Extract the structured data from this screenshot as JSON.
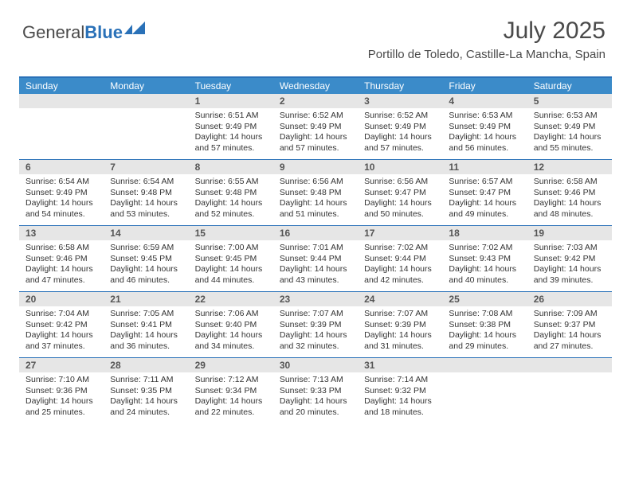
{
  "logo": {
    "text1": "General",
    "text2": "Blue"
  },
  "header": {
    "month_title": "July 2025",
    "location": "Portillo de Toledo, Castille-La Mancha, Spain"
  },
  "colors": {
    "brand_blue": "#2a71b8",
    "header_blue": "#3b8bc9",
    "daynum_bg": "#e6e6e6",
    "text": "#333333"
  },
  "day_names": [
    "Sunday",
    "Monday",
    "Tuesday",
    "Wednesday",
    "Thursday",
    "Friday",
    "Saturday"
  ],
  "first_weekday_index": 2,
  "days": [
    {
      "n": 1,
      "sunrise": "6:51 AM",
      "sunset": "9:49 PM",
      "daylight": "14 hours and 57 minutes."
    },
    {
      "n": 2,
      "sunrise": "6:52 AM",
      "sunset": "9:49 PM",
      "daylight": "14 hours and 57 minutes."
    },
    {
      "n": 3,
      "sunrise": "6:52 AM",
      "sunset": "9:49 PM",
      "daylight": "14 hours and 57 minutes."
    },
    {
      "n": 4,
      "sunrise": "6:53 AM",
      "sunset": "9:49 PM",
      "daylight": "14 hours and 56 minutes."
    },
    {
      "n": 5,
      "sunrise": "6:53 AM",
      "sunset": "9:49 PM",
      "daylight": "14 hours and 55 minutes."
    },
    {
      "n": 6,
      "sunrise": "6:54 AM",
      "sunset": "9:49 PM",
      "daylight": "14 hours and 54 minutes."
    },
    {
      "n": 7,
      "sunrise": "6:54 AM",
      "sunset": "9:48 PM",
      "daylight": "14 hours and 53 minutes."
    },
    {
      "n": 8,
      "sunrise": "6:55 AM",
      "sunset": "9:48 PM",
      "daylight": "14 hours and 52 minutes."
    },
    {
      "n": 9,
      "sunrise": "6:56 AM",
      "sunset": "9:48 PM",
      "daylight": "14 hours and 51 minutes."
    },
    {
      "n": 10,
      "sunrise": "6:56 AM",
      "sunset": "9:47 PM",
      "daylight": "14 hours and 50 minutes."
    },
    {
      "n": 11,
      "sunrise": "6:57 AM",
      "sunset": "9:47 PM",
      "daylight": "14 hours and 49 minutes."
    },
    {
      "n": 12,
      "sunrise": "6:58 AM",
      "sunset": "9:46 PM",
      "daylight": "14 hours and 48 minutes."
    },
    {
      "n": 13,
      "sunrise": "6:58 AM",
      "sunset": "9:46 PM",
      "daylight": "14 hours and 47 minutes."
    },
    {
      "n": 14,
      "sunrise": "6:59 AM",
      "sunset": "9:45 PM",
      "daylight": "14 hours and 46 minutes."
    },
    {
      "n": 15,
      "sunrise": "7:00 AM",
      "sunset": "9:45 PM",
      "daylight": "14 hours and 44 minutes."
    },
    {
      "n": 16,
      "sunrise": "7:01 AM",
      "sunset": "9:44 PM",
      "daylight": "14 hours and 43 minutes."
    },
    {
      "n": 17,
      "sunrise": "7:02 AM",
      "sunset": "9:44 PM",
      "daylight": "14 hours and 42 minutes."
    },
    {
      "n": 18,
      "sunrise": "7:02 AM",
      "sunset": "9:43 PM",
      "daylight": "14 hours and 40 minutes."
    },
    {
      "n": 19,
      "sunrise": "7:03 AM",
      "sunset": "9:42 PM",
      "daylight": "14 hours and 39 minutes."
    },
    {
      "n": 20,
      "sunrise": "7:04 AM",
      "sunset": "9:42 PM",
      "daylight": "14 hours and 37 minutes."
    },
    {
      "n": 21,
      "sunrise": "7:05 AM",
      "sunset": "9:41 PM",
      "daylight": "14 hours and 36 minutes."
    },
    {
      "n": 22,
      "sunrise": "7:06 AM",
      "sunset": "9:40 PM",
      "daylight": "14 hours and 34 minutes."
    },
    {
      "n": 23,
      "sunrise": "7:07 AM",
      "sunset": "9:39 PM",
      "daylight": "14 hours and 32 minutes."
    },
    {
      "n": 24,
      "sunrise": "7:07 AM",
      "sunset": "9:39 PM",
      "daylight": "14 hours and 31 minutes."
    },
    {
      "n": 25,
      "sunrise": "7:08 AM",
      "sunset": "9:38 PM",
      "daylight": "14 hours and 29 minutes."
    },
    {
      "n": 26,
      "sunrise": "7:09 AM",
      "sunset": "9:37 PM",
      "daylight": "14 hours and 27 minutes."
    },
    {
      "n": 27,
      "sunrise": "7:10 AM",
      "sunset": "9:36 PM",
      "daylight": "14 hours and 25 minutes."
    },
    {
      "n": 28,
      "sunrise": "7:11 AM",
      "sunset": "9:35 PM",
      "daylight": "14 hours and 24 minutes."
    },
    {
      "n": 29,
      "sunrise": "7:12 AM",
      "sunset": "9:34 PM",
      "daylight": "14 hours and 22 minutes."
    },
    {
      "n": 30,
      "sunrise": "7:13 AM",
      "sunset": "9:33 PM",
      "daylight": "14 hours and 20 minutes."
    },
    {
      "n": 31,
      "sunrise": "7:14 AM",
      "sunset": "9:32 PM",
      "daylight": "14 hours and 18 minutes."
    }
  ],
  "labels": {
    "sunrise": "Sunrise:",
    "sunset": "Sunset:",
    "daylight": "Daylight:"
  }
}
